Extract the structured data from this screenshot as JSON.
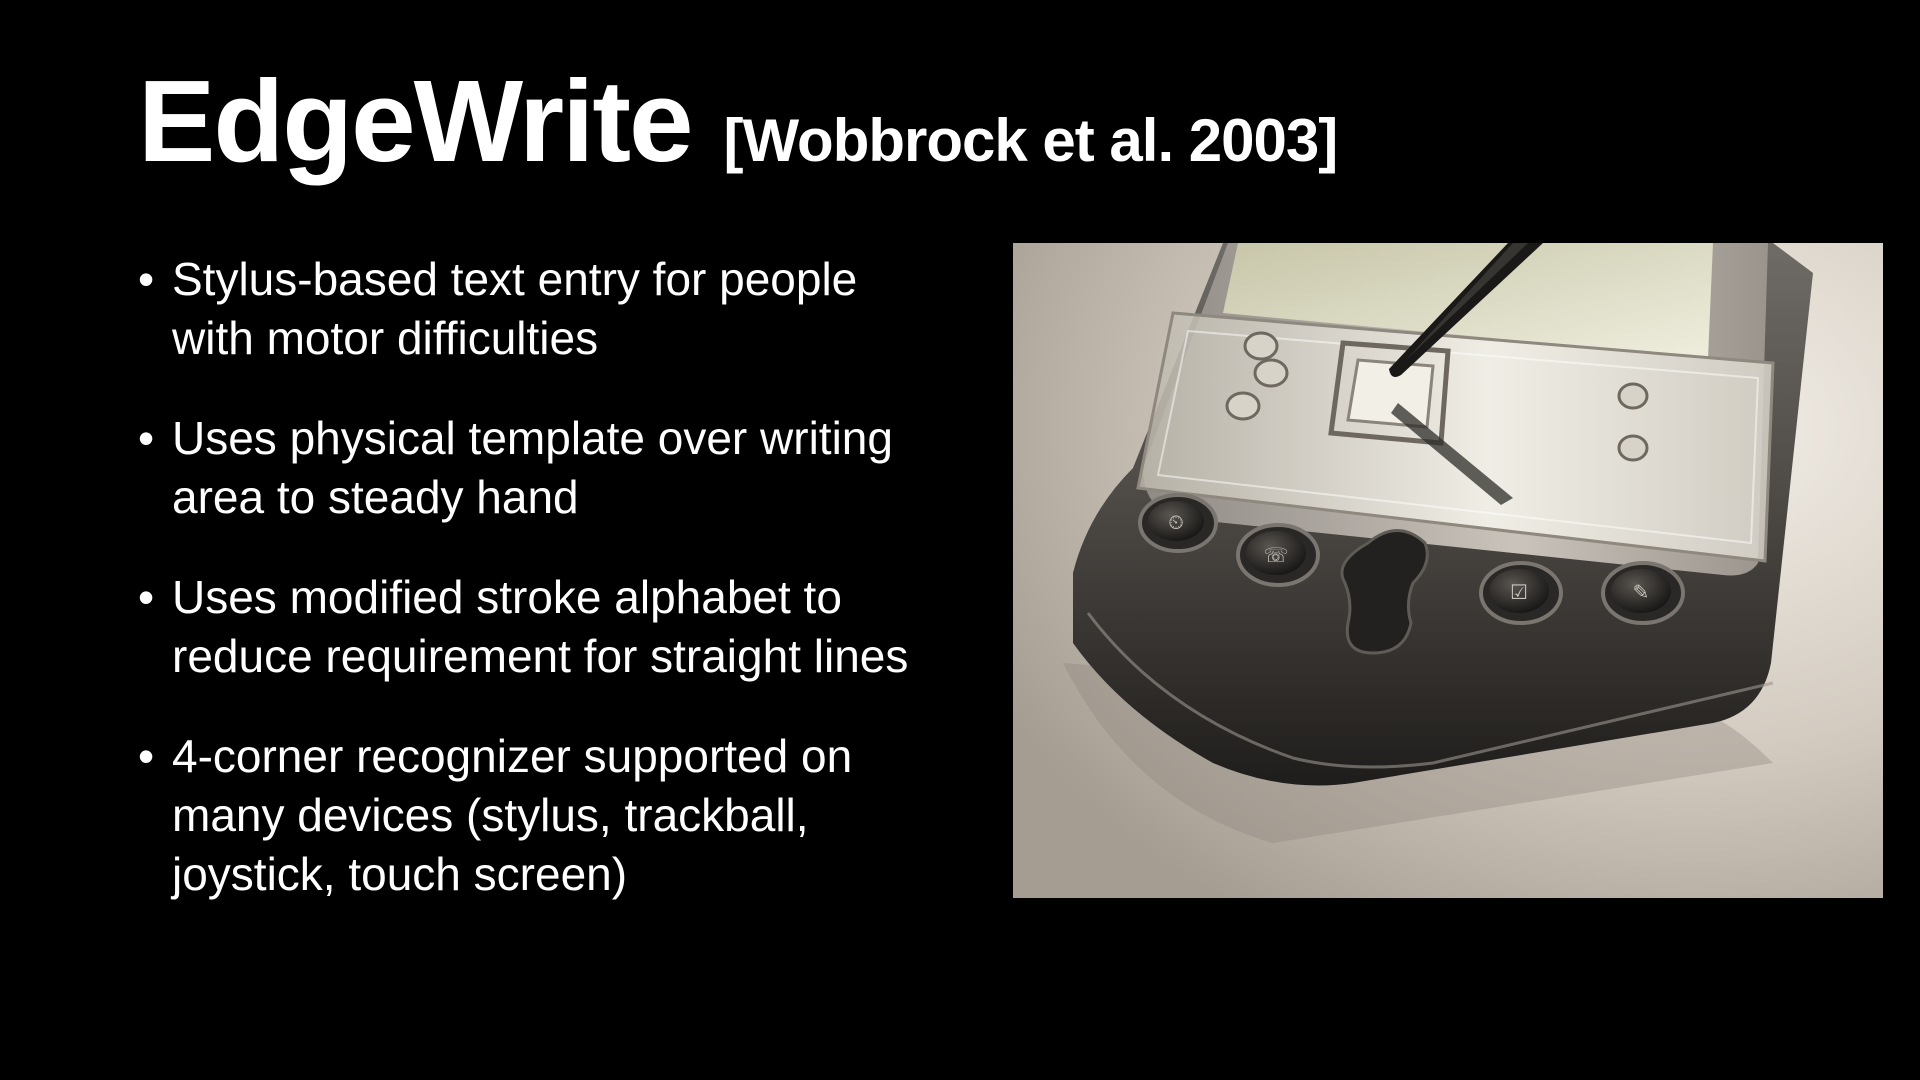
{
  "slide": {
    "title": "EdgeWrite",
    "citation": "[Wobbrock et al. 2003]",
    "bullet_glyph": "•",
    "bullets": [
      "Stylus-based text entry for people with motor difficulties",
      "Uses physical template over writing area to steady hand",
      "Uses modified stroke alphabet to reduce requirement for straight lines",
      "4-corner recognizer supported on many devices (stylus, trackball, joystick, touch screen)"
    ]
  },
  "image": {
    "subject": "pda-with-edgewrite-template-and-stylus",
    "colors": {
      "background": "#000000",
      "text": "#ffffff"
    }
  }
}
